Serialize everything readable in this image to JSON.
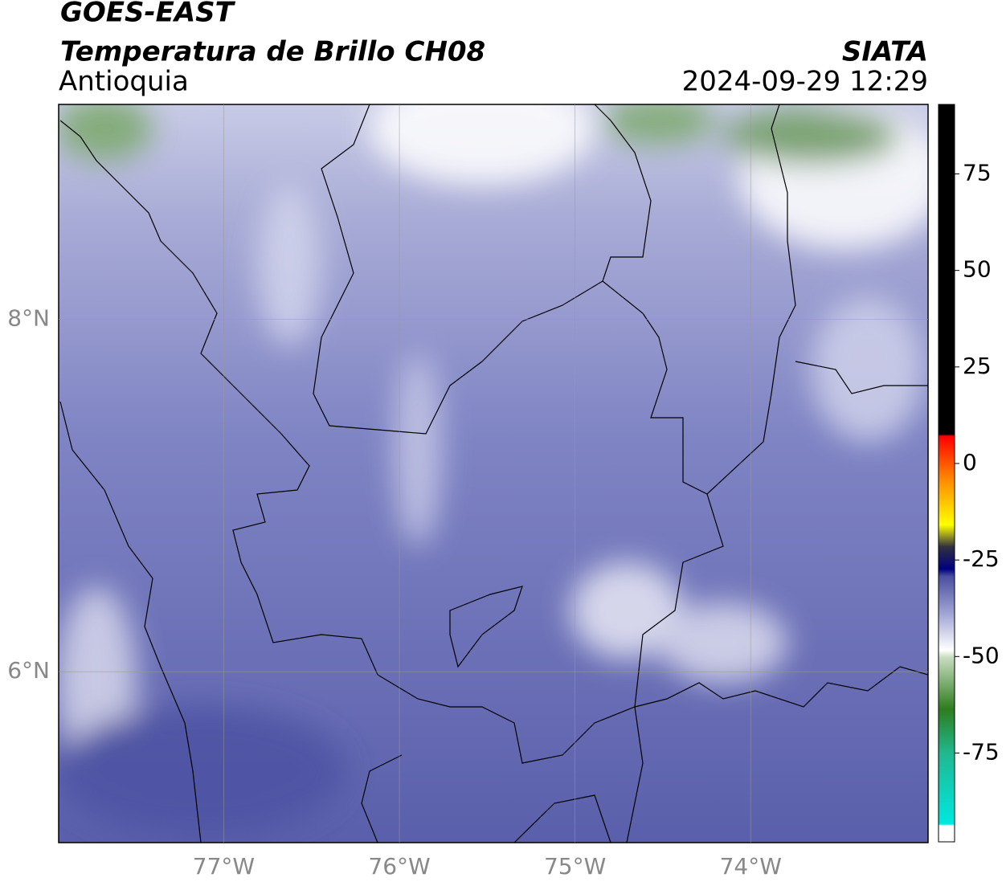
{
  "header": {
    "title": "GOES-EAST",
    "subtitle": "Temperatura de Brillo CH08",
    "source": "SIATA",
    "region": "Antioquia",
    "datetime": "2024-09-29 12:29"
  },
  "map": {
    "xlim": [
      -77.94,
      -72.99
    ],
    "ylim": [
      5.03,
      9.22
    ],
    "xticks": [
      {
        "value": -77,
        "label": "77°W"
      },
      {
        "value": -76,
        "label": "76°W"
      },
      {
        "value": -75,
        "label": "75°W"
      },
      {
        "value": -74,
        "label": "74°W"
      }
    ],
    "yticks": [
      {
        "value": 6,
        "label": "6°N"
      },
      {
        "value": 8,
        "label": "8°N"
      }
    ],
    "grid": true
  },
  "colorbar": {
    "ylim": [
      -98,
      93
    ],
    "yticks": [
      -75,
      -50,
      -25,
      0,
      25,
      50,
      75
    ]
  }
}
